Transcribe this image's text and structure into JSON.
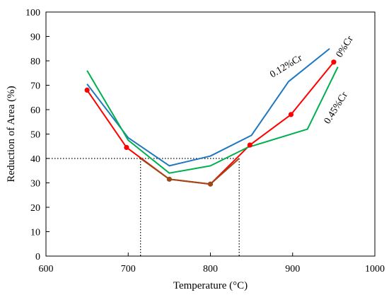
{
  "chart_data": {
    "type": "line",
    "xlabel": "Temperature (°C)",
    "ylabel": "Reduction of Area (%)",
    "xlim": [
      600,
      1000
    ],
    "ylim": [
      0,
      100
    ],
    "x_ticks": [
      "600",
      "700",
      "800",
      "900",
      "1000"
    ],
    "y_ticks": [
      "0",
      "10",
      "20",
      "30",
      "40",
      "50",
      "60",
      "70",
      "80",
      "90",
      "100"
    ],
    "grid": false,
    "series": [
      {
        "name": "0.12%Cr",
        "color": "#1f77c0",
        "x": [
          650,
          700,
          750,
          800,
          850,
          895,
          945
        ],
        "y": [
          70.5,
          48.5,
          37,
          41,
          49.5,
          71.5,
          85
        ]
      },
      {
        "name": "0%Cr",
        "color": "#ff0000",
        "markers": true,
        "x": [
          650,
          698,
          750,
          800,
          848,
          898,
          950
        ],
        "y": [
          68,
          44.5,
          31.5,
          29.5,
          45.5,
          58,
          79.5
        ]
      },
      {
        "name": "0.45%Cr",
        "color": "#00b050",
        "x": [
          650,
          700,
          750,
          800,
          845,
          918,
          955
        ],
        "y": [
          76,
          47.5,
          34,
          37,
          44.5,
          52,
          77.5
        ]
      }
    ],
    "segment_highlight": {
      "color": "#9c4a1a",
      "x": [
        715,
        750,
        800,
        835
      ],
      "y": [
        40,
        31.5,
        29.5,
        40
      ]
    },
    "reference_lines": {
      "y": 40,
      "x": [
        715,
        835
      ],
      "style": "dotted"
    }
  }
}
